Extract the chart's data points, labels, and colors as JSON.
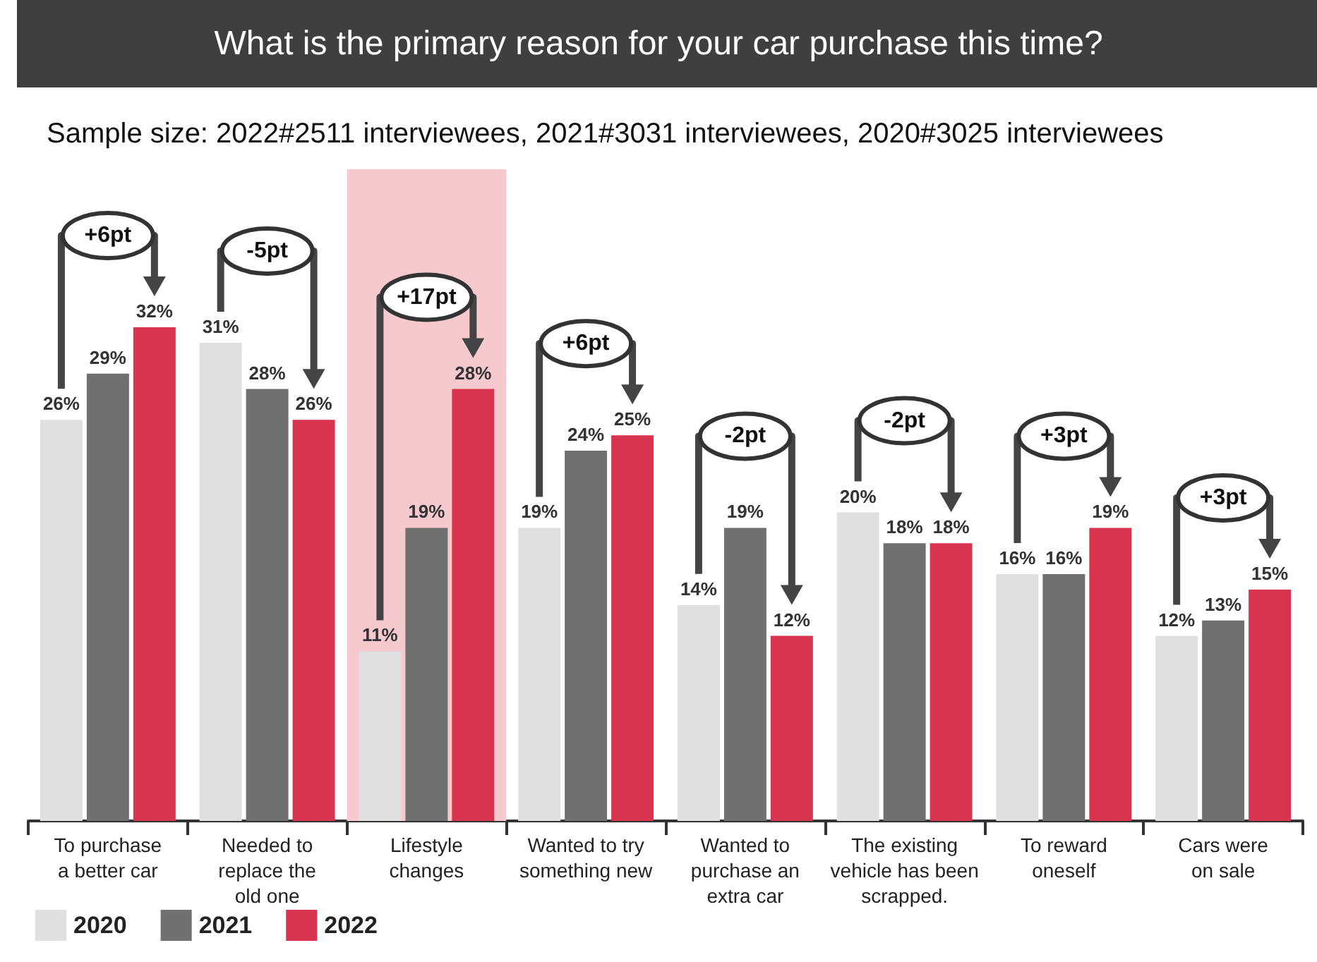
{
  "chart_data": {
    "type": "bar",
    "title": "What is the primary reason for your car purchase this time?",
    "subtitle": "Sample size: 2022#2511 interviewees, 2021#3031 interviewees, 2020#3025 interviewees",
    "categories": [
      "To purchase\na better car",
      "Needed to\nreplace the\nold one",
      "Lifestyle\nchanges",
      "Wanted to try\nsomething new",
      "Wanted to\npurchase an\nextra car",
      "The existing\nvehicle has been\nscrapped.",
      "To reward\noneself",
      "Cars were\non sale"
    ],
    "series": [
      {
        "name": "2020",
        "color": "#e0e0e0",
        "values": [
          26,
          31,
          11,
          19,
          14,
          20,
          16,
          12
        ],
        "value_labels": [
          "26%",
          "31%",
          "11%",
          "19%",
          "14%",
          "20%",
          "16%",
          "12%"
        ]
      },
      {
        "name": "2021",
        "color": "#707070",
        "values": [
          29,
          28,
          19,
          24,
          19,
          18,
          16,
          13
        ],
        "value_labels": [
          "29%",
          "28%",
          "19%",
          "24%",
          "19%",
          "18%",
          "16%",
          "13%"
        ]
      },
      {
        "name": "2022",
        "color": "#d8344f",
        "values": [
          32,
          26,
          28,
          25,
          12,
          18,
          19,
          15
        ],
        "value_labels": [
          "32%",
          "26%",
          "28%",
          "25%",
          "12%",
          "18%",
          "19%",
          "15%"
        ]
      }
    ],
    "annotations": [
      "+6pt",
      "-5pt",
      "+17pt",
      "+6pt",
      "-2pt",
      "-2pt",
      "+3pt",
      "+3pt"
    ],
    "bands": [
      {
        "axis": "x",
        "from": "Lifestyle\nchanges",
        "to": "Lifestyle\nchanges",
        "color": "#f6c9cf"
      }
    ],
    "legend": "bottom left"
  }
}
